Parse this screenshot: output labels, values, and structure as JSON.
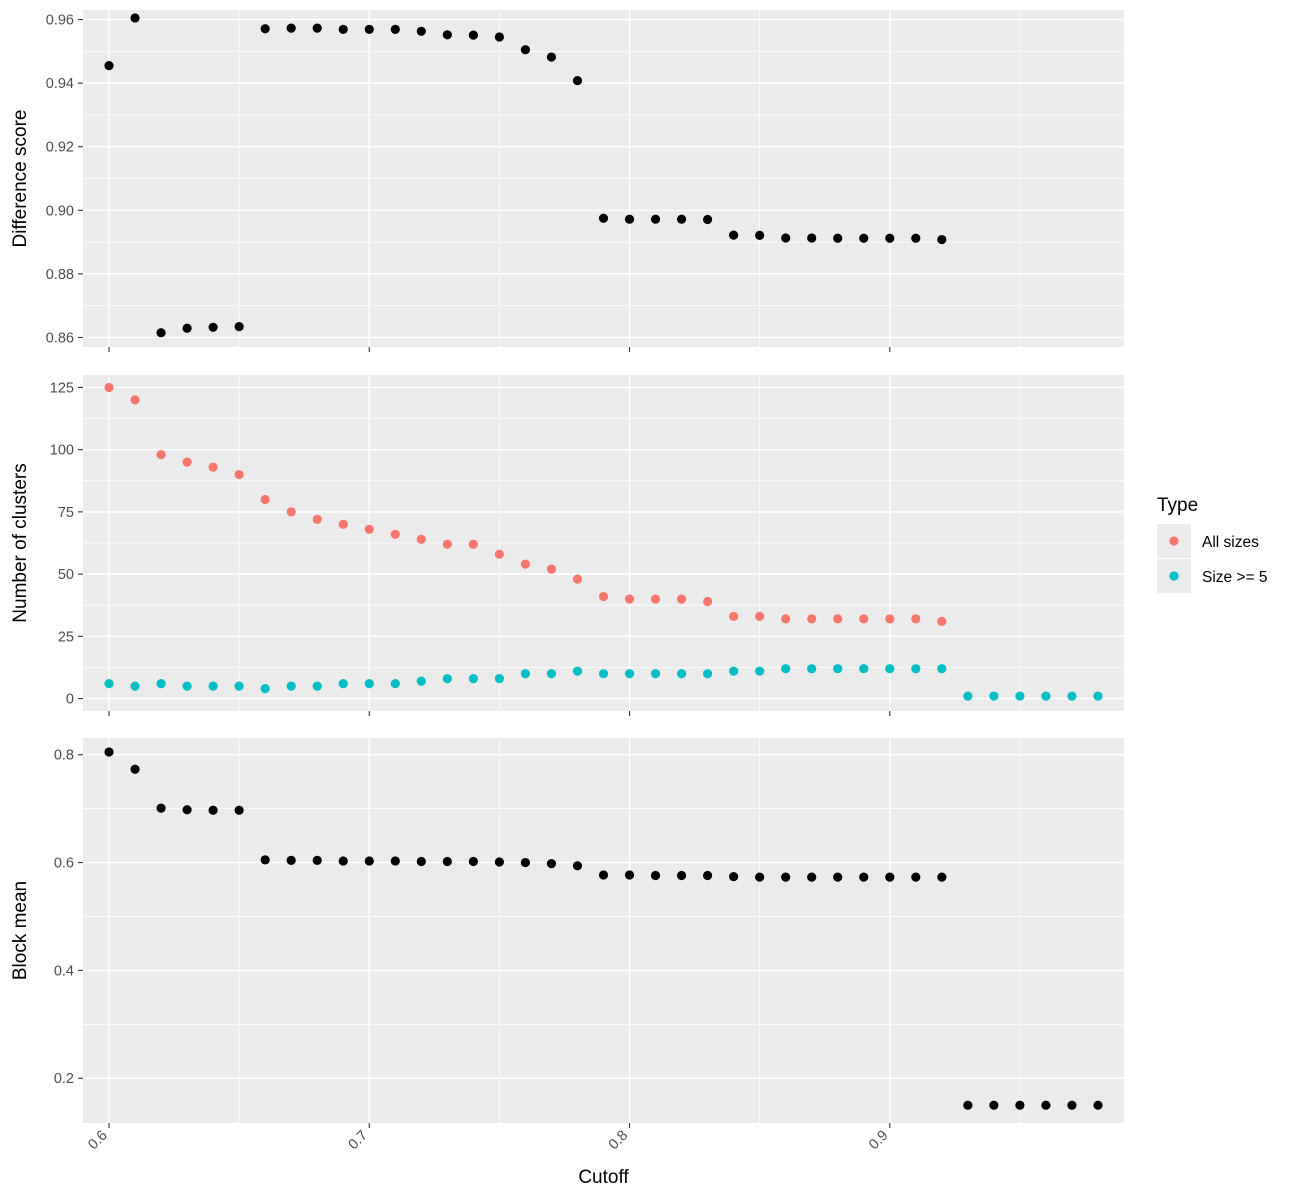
{
  "chart_data": [
    {
      "type": "scatter",
      "panel": "top",
      "ylabel": "Difference score",
      "xlim": [
        0.59,
        0.99
      ],
      "ylim": [
        0.857,
        0.963
      ],
      "y_ticks": [
        0.86,
        0.88,
        0.9,
        0.92,
        0.94,
        0.96
      ],
      "y_tick_labels": [
        "0.86",
        "0.88",
        "0.90",
        "0.92",
        "0.94",
        "0.96"
      ],
      "x_ticks": [
        0.6,
        0.7,
        0.8,
        0.9
      ],
      "grid": true,
      "point_color": "#000000",
      "series": [
        {
          "x": [
            0.6,
            0.61,
            0.62,
            0.63,
            0.64,
            0.65,
            0.66,
            0.67,
            0.68,
            0.69,
            0.7,
            0.71,
            0.72,
            0.73,
            0.74,
            0.75,
            0.76,
            0.77,
            0.78,
            0.79,
            0.8,
            0.81,
            0.82,
            0.83,
            0.84,
            0.85,
            0.86,
            0.87,
            0.88,
            0.89,
            0.9,
            0.91,
            0.92
          ],
          "y": [
            0.9455,
            0.9605,
            0.8615,
            0.8629,
            0.8632,
            0.8634,
            0.9571,
            0.9573,
            0.9573,
            0.9569,
            0.9569,
            0.9569,
            0.9563,
            0.9552,
            0.9551,
            0.9545,
            0.9505,
            0.9482,
            0.9408,
            0.8975,
            0.8972,
            0.8972,
            0.8972,
            0.8971,
            0.8922,
            0.8921,
            0.8913,
            0.8913,
            0.8912,
            0.8912,
            0.8912,
            0.8912,
            0.8908
          ]
        }
      ]
    },
    {
      "type": "scatter",
      "panel": "middle",
      "ylabel": "Number of clusters",
      "xlim": [
        0.59,
        0.99
      ],
      "ylim": [
        -5,
        130
      ],
      "y_ticks": [
        0,
        25,
        50,
        75,
        100,
        125
      ],
      "y_tick_labels": [
        "0",
        "25",
        "50",
        "75",
        "100",
        "125"
      ],
      "x_ticks": [
        0.6,
        0.7,
        0.8,
        0.9
      ],
      "grid": true,
      "legend": {
        "title": "Type",
        "placement": "right",
        "entries": [
          {
            "label": "All sizes",
            "color": "#F8766D"
          },
          {
            "label": "Size >= 5",
            "color": "#00BFC4"
          }
        ]
      },
      "series": [
        {
          "name": "All sizes",
          "color": "#F8766D",
          "x": [
            0.6,
            0.61,
            0.62,
            0.63,
            0.64,
            0.65,
            0.66,
            0.67,
            0.68,
            0.69,
            0.7,
            0.71,
            0.72,
            0.73,
            0.74,
            0.75,
            0.76,
            0.77,
            0.78,
            0.79,
            0.8,
            0.81,
            0.82,
            0.83,
            0.84,
            0.85,
            0.86,
            0.87,
            0.88,
            0.89,
            0.9,
            0.91,
            0.92
          ],
          "y": [
            125,
            120,
            98,
            95,
            93,
            90,
            80,
            75,
            72,
            70,
            68,
            66,
            64,
            62,
            62,
            58,
            54,
            52,
            48,
            41,
            40,
            40,
            40,
            39,
            33,
            33,
            32,
            32,
            32,
            32,
            32,
            32,
            31
          ]
        },
        {
          "name": "Size >= 5",
          "color": "#00BFC4",
          "x": [
            0.6,
            0.61,
            0.62,
            0.63,
            0.64,
            0.65,
            0.66,
            0.67,
            0.68,
            0.69,
            0.7,
            0.71,
            0.72,
            0.73,
            0.74,
            0.75,
            0.76,
            0.77,
            0.78,
            0.79,
            0.8,
            0.81,
            0.82,
            0.83,
            0.84,
            0.85,
            0.86,
            0.87,
            0.88,
            0.89,
            0.9,
            0.91,
            0.92,
            0.93,
            0.94,
            0.95,
            0.96,
            0.97,
            0.98
          ],
          "y": [
            6,
            5,
            6,
            5,
            5,
            5,
            4,
            5,
            5,
            6,
            6,
            6,
            7,
            8,
            8,
            8,
            10,
            10,
            11,
            10,
            10,
            10,
            10,
            10,
            11,
            11,
            12,
            12,
            12,
            12,
            12,
            12,
            12,
            1,
            1,
            1,
            1,
            1,
            1
          ]
        }
      ]
    },
    {
      "type": "scatter",
      "panel": "bottom",
      "ylabel": "Block mean",
      "xlabel": "Cutoff",
      "xlim": [
        0.59,
        0.99
      ],
      "ylim": [
        0.117,
        0.831
      ],
      "y_ticks": [
        0.2,
        0.4,
        0.6,
        0.8
      ],
      "y_tick_labels": [
        "0.2",
        "0.4",
        "0.6",
        "0.8"
      ],
      "x_ticks": [
        0.6,
        0.7,
        0.8,
        0.9
      ],
      "x_tick_labels": [
        "0.6",
        "0.7",
        "0.8",
        "0.9"
      ],
      "grid": true,
      "point_color": "#000000",
      "series": [
        {
          "x": [
            0.6,
            0.61,
            0.62,
            0.63,
            0.64,
            0.65,
            0.66,
            0.67,
            0.68,
            0.69,
            0.7,
            0.71,
            0.72,
            0.73,
            0.74,
            0.75,
            0.76,
            0.77,
            0.78,
            0.79,
            0.8,
            0.81,
            0.82,
            0.83,
            0.84,
            0.85,
            0.86,
            0.87,
            0.88,
            0.89,
            0.9,
            0.91,
            0.92,
            0.93,
            0.94,
            0.95,
            0.96,
            0.97,
            0.98
          ],
          "y": [
            0.805,
            0.773,
            0.701,
            0.698,
            0.697,
            0.697,
            0.605,
            0.604,
            0.604,
            0.603,
            0.603,
            0.603,
            0.602,
            0.602,
            0.602,
            0.601,
            0.6,
            0.598,
            0.594,
            0.577,
            0.577,
            0.576,
            0.576,
            0.576,
            0.574,
            0.573,
            0.573,
            0.573,
            0.573,
            0.573,
            0.573,
            0.573,
            0.573,
            0.15,
            0.15,
            0.15,
            0.15,
            0.15,
            0.15
          ]
        }
      ]
    }
  ]
}
